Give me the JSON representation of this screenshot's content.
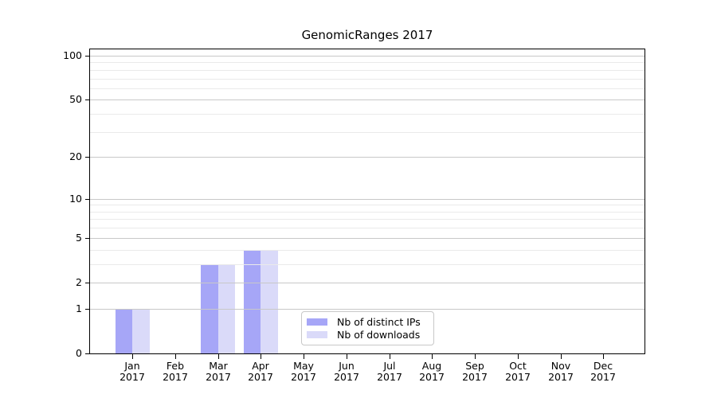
{
  "chart_data": {
    "type": "bar",
    "title": "GenomicRanges 2017",
    "categories": [
      "Jan",
      "Feb",
      "Mar",
      "Apr",
      "May",
      "Jun",
      "Jul",
      "Aug",
      "Sep",
      "Oct",
      "Nov",
      "Dec"
    ],
    "x_year_label": "2017",
    "series": [
      {
        "name": "Nb of distinct IPs",
        "color": "#a6a6f7",
        "values": [
          1,
          0,
          3,
          4,
          0,
          0,
          0,
          0,
          0,
          0,
          0,
          0
        ]
      },
      {
        "name": "Nb of downloads",
        "color": "#dadaf9",
        "values": [
          1,
          0,
          3,
          4,
          0,
          0,
          0,
          0,
          0,
          0,
          0,
          0
        ]
      }
    ],
    "y_axis": {
      "scale": "log10(1+x)",
      "tick_values": [
        0,
        1,
        2,
        5,
        10,
        20,
        50,
        100
      ],
      "major_grid_values": [
        1,
        2,
        5,
        10,
        20,
        50,
        100
      ],
      "minor_grid_values": [
        3,
        4,
        6,
        7,
        8,
        9,
        30,
        40,
        60,
        70,
        80,
        90
      ],
      "range_top": 110
    },
    "grid": "horizontal",
    "legend_position": "inside lower-center"
  },
  "colors": {
    "background": "#ffffff",
    "axis": "#000000",
    "grid_major": "#c8c8c8",
    "grid_minor": "#eaeaea",
    "legend_border": "#c8c8c8",
    "text": "#000000"
  }
}
